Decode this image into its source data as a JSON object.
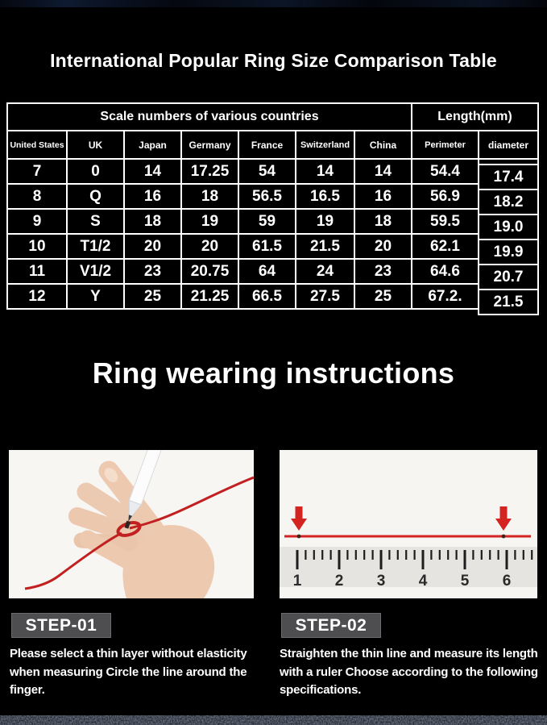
{
  "page_title": "International Popular Ring Size Comparison Table",
  "table": {
    "group_headers": [
      {
        "label": "Scale numbers of various countries",
        "span": 7
      },
      {
        "label": "Length(mm)",
        "span": 2
      }
    ],
    "columns": [
      "United States",
      "UK",
      "Japan",
      "Germany",
      "France",
      "Switzerland",
      "China",
      "Perimeter",
      "diameter"
    ],
    "rows": [
      [
        "7",
        "0",
        "14",
        "17.25",
        "54",
        "14",
        "14",
        "54.4",
        "17.4"
      ],
      [
        "8",
        "Q",
        "16",
        "18",
        "56.5",
        "16.5",
        "16",
        "56.9",
        "18.2"
      ],
      [
        "9",
        "S",
        "18",
        "19",
        "59",
        "19",
        "18",
        "59.5",
        "19.0"
      ],
      [
        "10",
        "T1/2",
        "20",
        "20",
        "61.5",
        "21.5",
        "20",
        "62.1",
        "19.9"
      ],
      [
        "11",
        "V1/2",
        "23",
        "20.75",
        "64",
        "24",
        "23",
        "64.6",
        "20.7"
      ],
      [
        "12",
        "Y",
        "25",
        "21.25",
        "66.5",
        "27.5",
        "25",
        "67.2.",
        "21.5"
      ]
    ]
  },
  "instructions": {
    "heading": "Ring wearing instructions",
    "steps": [
      {
        "label": "STEP-01",
        "text": "Please select a thin layer without elasticity when measuring Circle the line around the finger.",
        "illustration": "hand-with-red-thread-and-marker-pen"
      },
      {
        "label": "STEP-02",
        "text": "Straighten the thin line and measure its length with a ruler Choose according to the following specifications.",
        "illustration": "ruler-with-red-line-and-arrows"
      }
    ]
  },
  "ruler": {
    "numbers": [
      "1",
      "2",
      "3",
      "4",
      "5",
      "6"
    ]
  },
  "colors": {
    "background": "#000000",
    "table_lines": "#ffffff",
    "text": "#ffffff",
    "step_label_background": "#4e4e50",
    "red_accent": "#d42421"
  }
}
